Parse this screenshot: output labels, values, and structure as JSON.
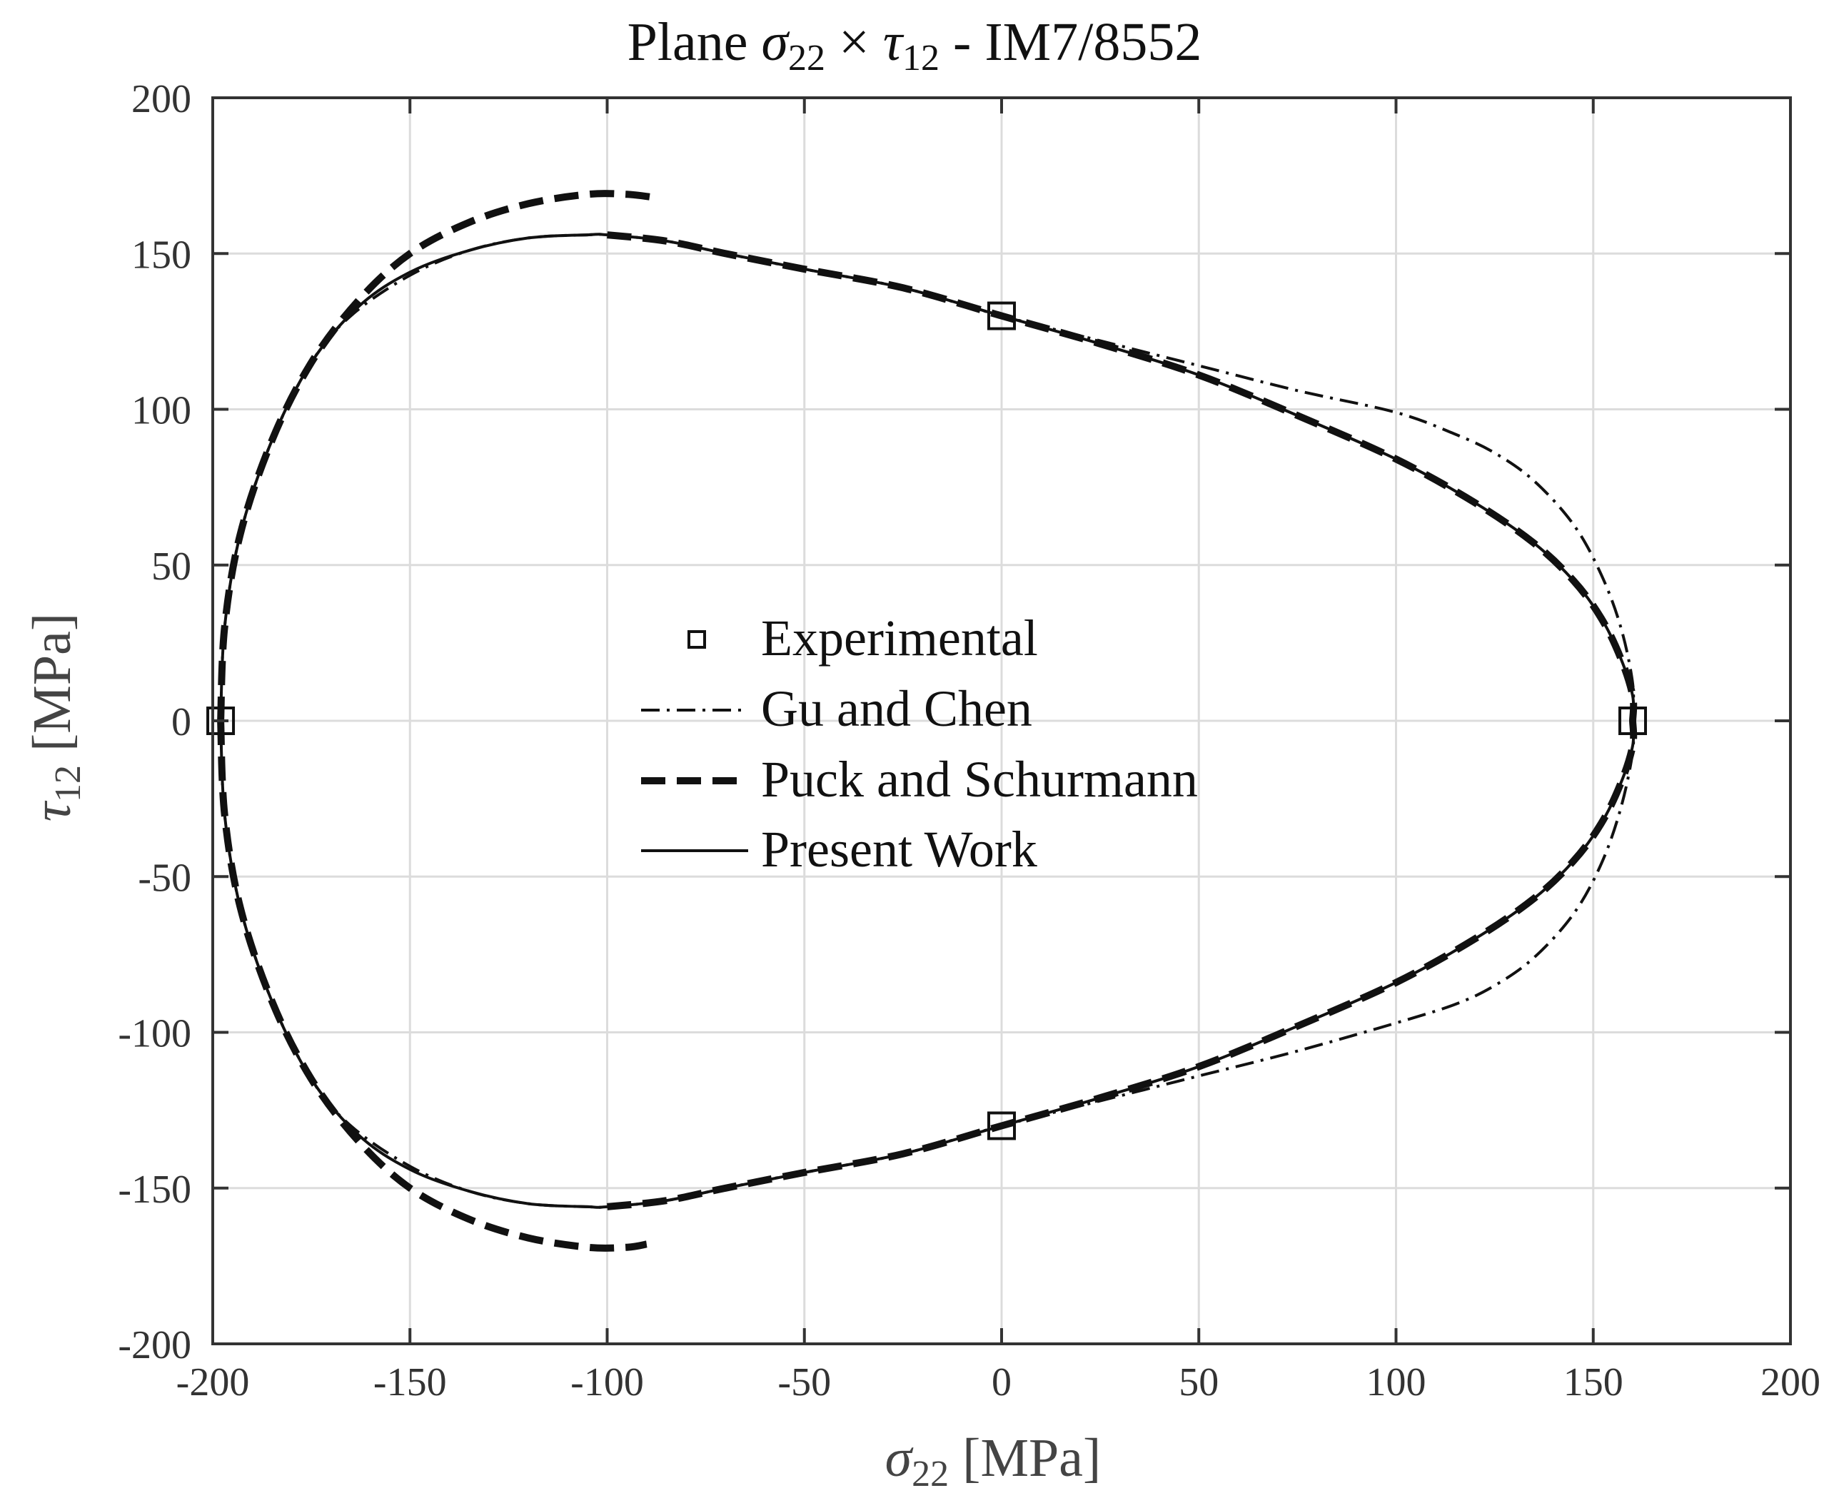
{
  "chart_data": {
    "type": "line",
    "title_parts": {
      "prefix": "Plane ",
      "var1": "σ",
      "sub1": "22",
      "times": " × ",
      "var2": "τ",
      "sub2": "12",
      "suffix": " - IM7/8552"
    },
    "xlabel_parts": {
      "var": "σ",
      "sub": "22",
      "unit": " [MPa]"
    },
    "ylabel_parts": {
      "var": "τ",
      "sub": "12",
      "unit": " [MPa]"
    },
    "xlim": [
      -200,
      200
    ],
    "ylim": [
      -200,
      200
    ],
    "xticks": [
      -200,
      -150,
      -100,
      -50,
      0,
      50,
      100,
      150,
      200
    ],
    "yticks": [
      -200,
      -150,
      -100,
      -50,
      0,
      50,
      100,
      150,
      200
    ],
    "xtick_labels": [
      "-200",
      "-150",
      "-100",
      "-50",
      "0",
      "50",
      "100",
      "150",
      "200"
    ],
    "ytick_labels": [
      "-200",
      "-150",
      "-100",
      "-50",
      "0",
      "50",
      "100",
      "150",
      "200"
    ],
    "grid": true,
    "legend_position": "center",
    "series": [
      {
        "name": "Experimental",
        "style": "square-markers",
        "points": [
          [
            -198,
            0
          ],
          [
            0,
            130
          ],
          [
            0,
            -130
          ],
          [
            160,
            0
          ]
        ]
      },
      {
        "name": "Gu and Chen",
        "style": "dash-dot",
        "upper": [
          [
            -198,
            0
          ],
          [
            -197,
            30
          ],
          [
            -193,
            60
          ],
          [
            -185,
            90
          ],
          [
            -175,
            115
          ],
          [
            -165,
            130
          ],
          [
            -150,
            143
          ],
          [
            -135,
            151
          ],
          [
            -120,
            155
          ],
          [
            -105,
            156
          ],
          [
            -100,
            156
          ],
          [
            -85,
            154
          ],
          [
            -70,
            150
          ],
          [
            -50,
            145
          ],
          [
            -25,
            139
          ],
          [
            0,
            130
          ],
          [
            25,
            122
          ],
          [
            50,
            114
          ],
          [
            75,
            106
          ],
          [
            100,
            99
          ],
          [
            115,
            92
          ],
          [
            125,
            86
          ],
          [
            135,
            77
          ],
          [
            145,
            63
          ],
          [
            152,
            47
          ],
          [
            157,
            30
          ],
          [
            160,
            12
          ],
          [
            160,
            0
          ]
        ],
        "lower": [
          [
            -198,
            0
          ],
          [
            -197,
            -30
          ],
          [
            -193,
            -60
          ],
          [
            -185,
            -90
          ],
          [
            -175,
            -115
          ],
          [
            -165,
            -130
          ],
          [
            -150,
            -143
          ],
          [
            -135,
            -151
          ],
          [
            -120,
            -155
          ],
          [
            -105,
            -156
          ],
          [
            -100,
            -156
          ],
          [
            -85,
            -154
          ],
          [
            -70,
            -150
          ],
          [
            -50,
            -145
          ],
          [
            -25,
            -139
          ],
          [
            0,
            -130
          ],
          [
            25,
            -122
          ],
          [
            50,
            -114
          ],
          [
            75,
            -106
          ],
          [
            100,
            -97
          ],
          [
            115,
            -91
          ],
          [
            125,
            -85
          ],
          [
            135,
            -76
          ],
          [
            145,
            -62
          ],
          [
            152,
            -46
          ],
          [
            157,
            -28
          ],
          [
            160,
            -10
          ],
          [
            160,
            0
          ]
        ]
      },
      {
        "name": "Puck and Schurmann",
        "style": "dashed",
        "upper": [
          [
            -198,
            0
          ],
          [
            -197,
            30
          ],
          [
            -193,
            60
          ],
          [
            -185,
            90
          ],
          [
            -175,
            115
          ],
          [
            -163,
            135
          ],
          [
            -150,
            150
          ],
          [
            -135,
            160
          ],
          [
            -120,
            166
          ],
          [
            -105,
            169
          ],
          [
            -95,
            169
          ],
          [
            -88,
            168
          ]
        ],
        "upper_right": [
          [
            -100,
            156
          ],
          [
            -85,
            154
          ],
          [
            -70,
            150
          ],
          [
            -50,
            145
          ],
          [
            -25,
            139
          ],
          [
            0,
            130
          ],
          [
            25,
            121
          ],
          [
            50,
            111
          ],
          [
            75,
            98
          ],
          [
            100,
            84
          ],
          [
            120,
            70
          ],
          [
            135,
            57
          ],
          [
            145,
            45
          ],
          [
            152,
            33
          ],
          [
            157,
            20
          ],
          [
            160,
            8
          ],
          [
            160,
            0
          ]
        ],
        "lower": [
          [
            -198,
            0
          ],
          [
            -197,
            -30
          ],
          [
            -193,
            -60
          ],
          [
            -185,
            -90
          ],
          [
            -175,
            -115
          ],
          [
            -163,
            -135
          ],
          [
            -150,
            -150
          ],
          [
            -135,
            -160
          ],
          [
            -120,
            -166
          ],
          [
            -105,
            -169
          ],
          [
            -95,
            -169
          ],
          [
            -90,
            -168
          ]
        ],
        "lower_right": [
          [
            -100,
            -156
          ],
          [
            -85,
            -154
          ],
          [
            -70,
            -150
          ],
          [
            -50,
            -145
          ],
          [
            -25,
            -139
          ],
          [
            0,
            -130
          ],
          [
            25,
            -121
          ],
          [
            50,
            -111
          ],
          [
            75,
            -98
          ],
          [
            100,
            -84
          ],
          [
            120,
            -70
          ],
          [
            135,
            -57
          ],
          [
            145,
            -45
          ],
          [
            152,
            -33
          ],
          [
            157,
            -20
          ],
          [
            160,
            -8
          ],
          [
            160,
            0
          ]
        ]
      },
      {
        "name": "Present Work",
        "style": "solid",
        "upper": [
          [
            -198,
            0
          ],
          [
            -197,
            30
          ],
          [
            -193,
            60
          ],
          [
            -185,
            90
          ],
          [
            -175,
            115
          ],
          [
            -163,
            133
          ],
          [
            -150,
            144
          ],
          [
            -135,
            151
          ],
          [
            -120,
            155
          ],
          [
            -105,
            156
          ],
          [
            -100,
            156
          ],
          [
            -85,
            154
          ],
          [
            -70,
            150
          ],
          [
            -50,
            145
          ],
          [
            -25,
            139
          ],
          [
            0,
            130
          ],
          [
            25,
            121
          ],
          [
            50,
            111
          ],
          [
            75,
            98
          ],
          [
            100,
            84
          ],
          [
            120,
            70
          ],
          [
            135,
            57
          ],
          [
            145,
            45
          ],
          [
            152,
            33
          ],
          [
            157,
            20
          ],
          [
            160,
            8
          ],
          [
            160,
            0
          ]
        ],
        "lower": [
          [
            -198,
            0
          ],
          [
            -197,
            -30
          ],
          [
            -193,
            -60
          ],
          [
            -185,
            -90
          ],
          [
            -175,
            -115
          ],
          [
            -163,
            -133
          ],
          [
            -150,
            -144
          ],
          [
            -135,
            -151
          ],
          [
            -120,
            -155
          ],
          [
            -105,
            -156
          ],
          [
            -100,
            -156
          ],
          [
            -85,
            -154
          ],
          [
            -70,
            -150
          ],
          [
            -50,
            -145
          ],
          [
            -25,
            -139
          ],
          [
            0,
            -130
          ],
          [
            25,
            -121
          ],
          [
            50,
            -111
          ],
          [
            75,
            -98
          ],
          [
            100,
            -84
          ],
          [
            120,
            -70
          ],
          [
            135,
            -57
          ],
          [
            145,
            -45
          ],
          [
            152,
            -33
          ],
          [
            157,
            -20
          ],
          [
            160,
            -8
          ],
          [
            160,
            0
          ]
        ]
      }
    ]
  }
}
